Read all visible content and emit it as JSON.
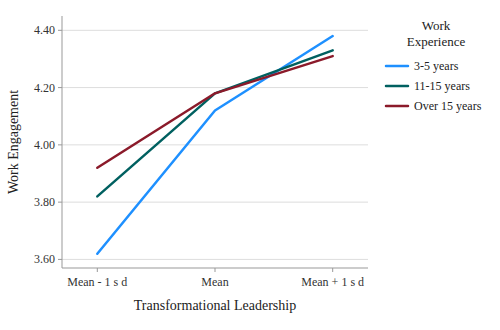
{
  "chart_data": {
    "type": "line",
    "categories": [
      "Mean - 1 s d",
      "Mean",
      "Mean + 1 s d"
    ],
    "series": [
      {
        "name": "3-5 years",
        "color": "#1E90FF",
        "values": [
          3.62,
          4.12,
          4.38
        ]
      },
      {
        "name": "11-15 years",
        "color": "#006060",
        "values": [
          3.82,
          4.18,
          4.33
        ]
      },
      {
        "name": "Over 15 years",
        "color": "#8B1A2A",
        "values": [
          3.92,
          4.18,
          4.31
        ]
      }
    ],
    "xlabel": "Transformational Leadership",
    "ylabel": "Work Engagement",
    "legend_title": "Work\nExperience",
    "ylim": [
      3.57,
      4.45
    ],
    "yticks": [
      {
        "value": 3.6,
        "label": "3.60"
      },
      {
        "value": 3.8,
        "label": "3.80"
      },
      {
        "value": 4.0,
        "label": "4.00"
      },
      {
        "value": 4.2,
        "label": "4.20"
      },
      {
        "value": 4.4,
        "label": "4.40"
      }
    ],
    "grid": true,
    "legend": "right"
  }
}
